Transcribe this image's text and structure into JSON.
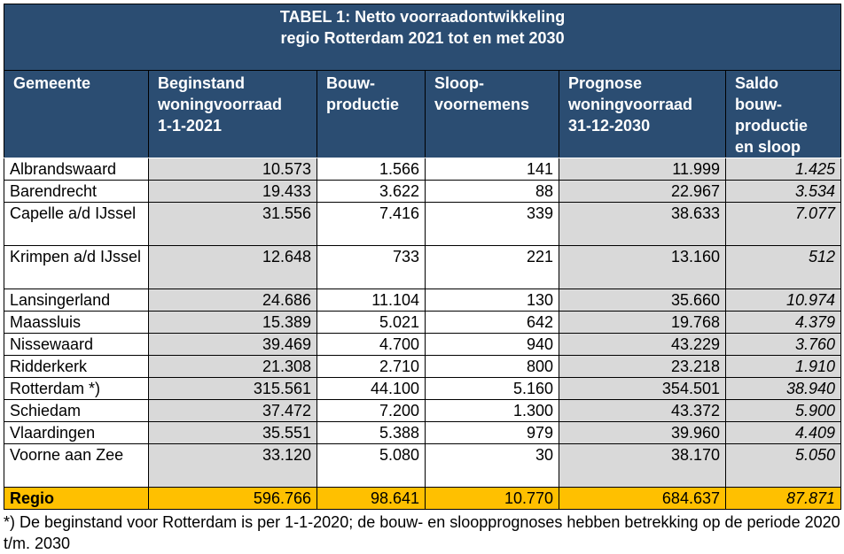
{
  "title_line1": "TABEL 1: Netto voorraadontwikkeling",
  "title_line2": "regio Rotterdam 2021 tot en met 2030",
  "columns": [
    "Gemeente",
    "Beginstand woningvoorraad 1-1-2021",
    "Bouw-productie",
    "Sloop-voornemens",
    "Prognose woningvoorraad 31-12-2030",
    "Saldo bouw-productie en sloop"
  ],
  "rows": [
    [
      "Albrandswaard",
      "10.573",
      "1.566",
      "141",
      "11.999",
      "1.425"
    ],
    [
      "Barendrecht",
      "19.433",
      "3.622",
      "88",
      "22.967",
      "3.534"
    ],
    [
      "Capelle a/d IJssel",
      "31.556",
      "7.416",
      "339",
      "38.633",
      "7.077"
    ],
    [
      "Krimpen a/d IJssel",
      "12.648",
      "733",
      "221",
      "13.160",
      "512"
    ],
    [
      "Lansingerland",
      "24.686",
      "11.104",
      "130",
      "35.660",
      "10.974"
    ],
    [
      "Maassluis",
      "15.389",
      "5.021",
      "642",
      "19.768",
      "4.379"
    ],
    [
      "Nissewaard",
      "39.469",
      "4.700",
      "940",
      "43.229",
      "3.760"
    ],
    [
      "Ridderkerk",
      "21.308",
      "2.710",
      "800",
      "23.218",
      "1.910"
    ],
    [
      "Rotterdam *)",
      "315.561",
      "44.100",
      "5.160",
      "354.501",
      "38.940"
    ],
    [
      "Schiedam",
      "37.472",
      "7.200",
      "1.300",
      "43.372",
      "5.900"
    ],
    [
      "Vlaardingen",
      "35.551",
      "5.388",
      "979",
      "39.960",
      "4.409"
    ],
    [
      "Voorne aan Zee",
      "33.120",
      "5.080",
      "30",
      "38.170",
      "5.050"
    ]
  ],
  "total": [
    "Regio",
    "596.766",
    "98.641",
    "10.770",
    "684.637",
    "87.871"
  ],
  "footnote": "*) De beginstand voor Rotterdam is per 1-1-2020; de bouw- en sloopprognoses hebben betrekking op de periode 2020 t/m. 2030",
  "colors": {
    "header": "#2B4D72",
    "shaded": "#D9D9D9",
    "total": "#FFC000"
  }
}
